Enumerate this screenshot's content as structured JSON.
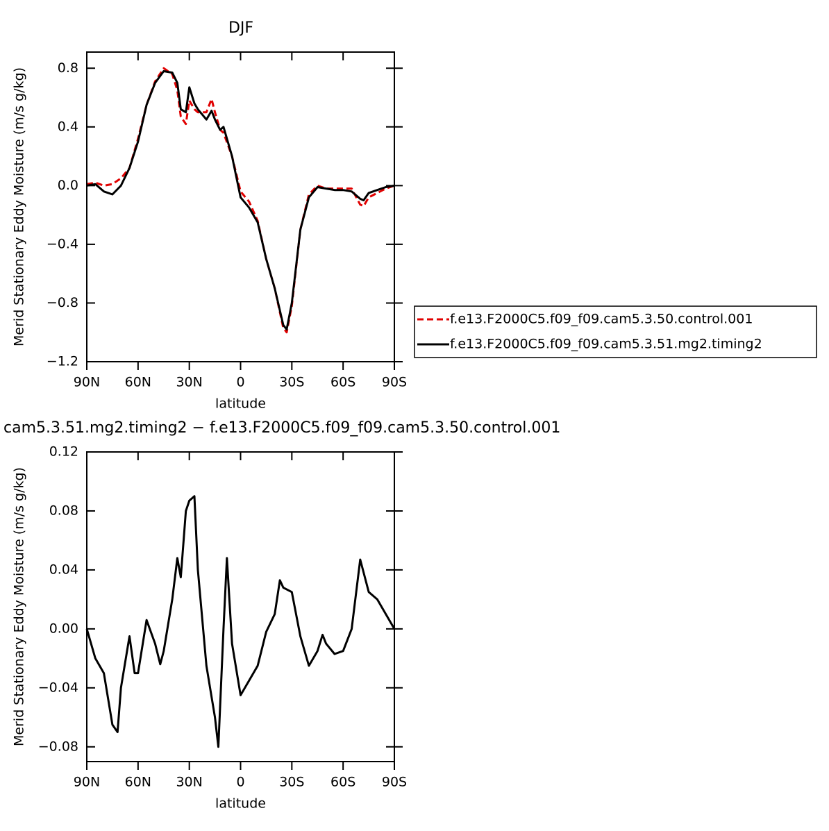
{
  "chart_data": [
    {
      "type": "line",
      "title": "DJF",
      "xlabel": "latitude",
      "ylabel": "Merid Stationary Eddy Moisture (m/s g/kg)",
      "x": [
        90,
        85,
        80,
        75,
        70,
        65,
        60,
        55,
        50,
        45,
        40,
        37,
        35,
        32,
        30,
        27,
        25,
        20,
        17,
        15,
        12,
        10,
        5,
        0,
        -5,
        -10,
        -15,
        -20,
        -25,
        -27,
        -30,
        -35,
        -40,
        -45,
        -50,
        -55,
        -60,
        -65,
        -70,
        -72,
        -75,
        -80,
        -85,
        -90
      ],
      "series": [
        {
          "name": "f.e13.F2000C5.f09_f09.cam5.3.50.control.001",
          "color": "#e00000",
          "dash": "dashed",
          "values": [
            0.01,
            0.02,
            0.0,
            0.01,
            0.05,
            0.12,
            0.32,
            0.55,
            0.71,
            0.8,
            0.76,
            0.65,
            0.47,
            0.42,
            0.58,
            0.52,
            0.5,
            0.5,
            0.59,
            0.5,
            0.38,
            0.36,
            0.2,
            -0.04,
            -0.11,
            -0.24,
            -0.5,
            -0.7,
            -0.97,
            -1.0,
            -0.82,
            -0.3,
            -0.06,
            0,
            -0.02,
            -0.02,
            -0.02,
            -0.02,
            -0.13,
            -0.14,
            -0.08,
            -0.05,
            -0.02,
            0
          ]
        },
        {
          "name": "f.e13.F2000C5.f09_f09.cam5.3.51.mg2.timing2",
          "color": "#000000",
          "dash": "solid",
          "values": [
            0,
            0.01,
            -0.04,
            -0.06,
            0,
            0.12,
            0.3,
            0.55,
            0.7,
            0.78,
            0.77,
            0.7,
            0.52,
            0.5,
            0.67,
            0.56,
            0.52,
            0.45,
            0.51,
            0.45,
            0.38,
            0.4,
            0.2,
            -0.08,
            -0.15,
            -0.25,
            -0.5,
            -0.7,
            -0.95,
            -0.98,
            -0.8,
            -0.3,
            -0.08,
            -0.01,
            -0.02,
            -0.03,
            -0.03,
            -0.04,
            -0.09,
            -0.1,
            -0.05,
            -0.03,
            -0.01,
            0
          ]
        }
      ],
      "xlim": [
        90,
        -90
      ],
      "xticks": [
        {
          "value": 90,
          "label": "90N"
        },
        {
          "value": 60,
          "label": "60N"
        },
        {
          "value": 30,
          "label": "30N"
        },
        0,
        {
          "value": -30,
          "label": "30S"
        },
        {
          "value": -60,
          "label": "60S"
        },
        {
          "value": -90,
          "label": "90S"
        }
      ],
      "ylim": [
        -1.2,
        0.91
      ],
      "yticks": [
        {
          "value": -1.2,
          "label": "−1.2"
        },
        {
          "value": -0.8,
          "label": "−0.8"
        },
        {
          "value": -0.4,
          "label": "−0.4"
        },
        {
          "value": 0,
          "label": "0.0"
        },
        0.4,
        0.8
      ],
      "legend": "outside-right"
    },
    {
      "type": "line",
      "title": "cam5.3.51.mg2.timing2 − f.e13.F2000C5.f09_f09.cam5.3.50.control.001",
      "xlabel": "latitude",
      "ylabel": "Merid Stationary Eddy Moisture (m/s g/kg)",
      "x": [
        90,
        85,
        80,
        75,
        72,
        70,
        65,
        62,
        60,
        55,
        50,
        47,
        45,
        40,
        37,
        35,
        32,
        30,
        27,
        25,
        20,
        15,
        13,
        10,
        8,
        5,
        0,
        -5,
        -10,
        -15,
        -20,
        -23,
        -25,
        -30,
        -35,
        -40,
        -45,
        -48,
        -50,
        -55,
        -60,
        -65,
        -70,
        -75,
        -80,
        -85,
        -90
      ],
      "series": [
        {
          "color": "#000000",
          "dash": "solid",
          "values": [
            0,
            -0.02,
            -0.03,
            -0.065,
            -0.07,
            -0.04,
            -0.005,
            -0.03,
            -0.03,
            0.006,
            -0.01,
            -0.024,
            -0.015,
            0.02,
            0.048,
            0.035,
            0.08,
            0.087,
            0.09,
            0.04,
            -0.025,
            -0.06,
            -0.08,
            0,
            0.048,
            -0.01,
            -0.045,
            -0.035,
            -0.025,
            -0.002,
            0.01,
            0.033,
            0.028,
            0.025,
            -0.005,
            -0.025,
            -0.015,
            -0.004,
            -0.01,
            -0.017,
            -0.015,
            0,
            0.047,
            0.025,
            0.02,
            0.01,
            0
          ]
        }
      ],
      "xlim": [
        90,
        -90
      ],
      "xticks": [
        {
          "value": 90,
          "label": "90N"
        },
        {
          "value": 60,
          "label": "60N"
        },
        {
          "value": 30,
          "label": "30N"
        },
        0,
        {
          "value": -30,
          "label": "30S"
        },
        {
          "value": -60,
          "label": "60S"
        },
        {
          "value": -90,
          "label": "90S"
        }
      ],
      "ylim": [
        -0.09,
        0.12
      ],
      "yticks": [
        {
          "value": -0.08,
          "label": "−0.08"
        },
        {
          "value": -0.04,
          "label": "−0.04"
        },
        {
          "value": 0,
          "label": "0.00"
        },
        0.04,
        0.08,
        0.12
      ]
    }
  ]
}
